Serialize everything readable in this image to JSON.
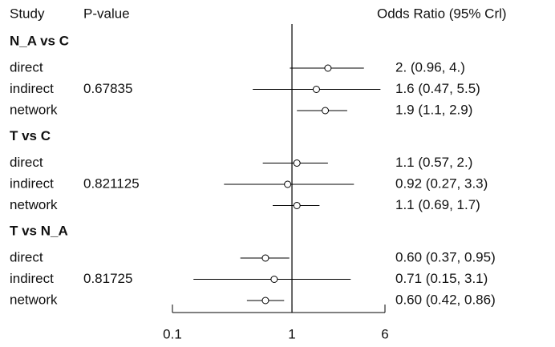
{
  "chart_data": {
    "type": "forest",
    "study_header": "Study",
    "p_header": "P-value",
    "effect_header": "Odds Ratio (95% Crl)",
    "log_scale": true,
    "xlim": [
      0.1,
      6
    ],
    "xticks": [
      0.1,
      1,
      6
    ],
    "reference_line": 1,
    "color": "#000000",
    "groups": [
      {
        "name": "N_A vs C",
        "p_value": 0.67835,
        "rows": [
          {
            "study": "direct",
            "value": 2,
            "ci": [
              0.96,
              4
            ],
            "value_label": "2. (0.96,  4.)"
          },
          {
            "study": "indirect",
            "value": 1.6,
            "ci": [
              0.47,
              5.5
            ],
            "value_label": "1.6 (0.47, 5.5)"
          },
          {
            "study": "network",
            "value": 1.9,
            "ci": [
              1.1,
              2.9
            ],
            "value_label": "1.9 (1.1, 2.9)"
          }
        ]
      },
      {
        "name": "T vs C",
        "p_value": 0.821125,
        "rows": [
          {
            "study": "direct",
            "value": 1.1,
            "ci": [
              0.57,
              2
            ],
            "value_label": "1.1 (0.57,  2.)"
          },
          {
            "study": "indirect",
            "value": 0.92,
            "ci": [
              0.27,
              3.3
            ],
            "value_label": "0.92 (0.27, 3.3)"
          },
          {
            "study": "network",
            "value": 1.1,
            "ci": [
              0.69,
              1.7
            ],
            "value_label": "1.1 (0.69, 1.7)"
          }
        ]
      },
      {
        "name": "T vs N_A",
        "p_value": 0.81725,
        "rows": [
          {
            "study": "direct",
            "value": 0.6,
            "ci": [
              0.37,
              0.95
            ],
            "value_label": "0.60 (0.37, 0.95)"
          },
          {
            "study": "indirect",
            "value": 0.71,
            "ci": [
              0.15,
              3.1
            ],
            "value_label": "0.71 (0.15, 3.1)"
          },
          {
            "study": "network",
            "value": 0.6,
            "ci": [
              0.42,
              0.86
            ],
            "value_label": "0.60 (0.42, 0.86)"
          }
        ]
      }
    ]
  }
}
